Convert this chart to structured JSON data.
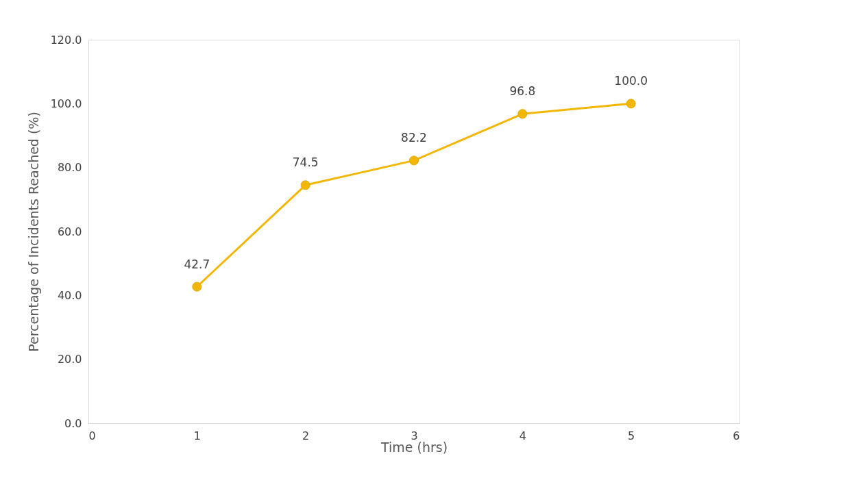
{
  "chart_data": {
    "type": "line",
    "xlabel": "Time (hrs)",
    "ylabel": "Percentage of Incidents Reached (%)",
    "x": [
      1,
      2,
      3,
      4,
      5
    ],
    "series": [
      {
        "color": "#f2b705",
        "values": [
          42.7,
          74.5,
          82.2,
          96.8,
          100.0
        ],
        "value_labels": [
          "42.7",
          "74.5",
          "82.2",
          "96.8",
          "100.0"
        ]
      }
    ],
    "xlim": [
      0,
      6
    ],
    "xticks": [
      0,
      1,
      2,
      3,
      4,
      5,
      6
    ],
    "ylim": [
      0,
      120
    ],
    "yticks": [
      {
        "value": 0,
        "label": "0.0"
      },
      {
        "value": 20,
        "label": "20.0"
      },
      {
        "value": 40,
        "label": "40.0"
      },
      {
        "value": 60,
        "label": "60.0"
      },
      {
        "value": 80,
        "label": "80.0"
      },
      {
        "value": 100,
        "label": "100.0"
      },
      {
        "value": 120,
        "label": "120.0"
      }
    ],
    "grid": false,
    "marker": "circle",
    "line_style": "solid"
  }
}
